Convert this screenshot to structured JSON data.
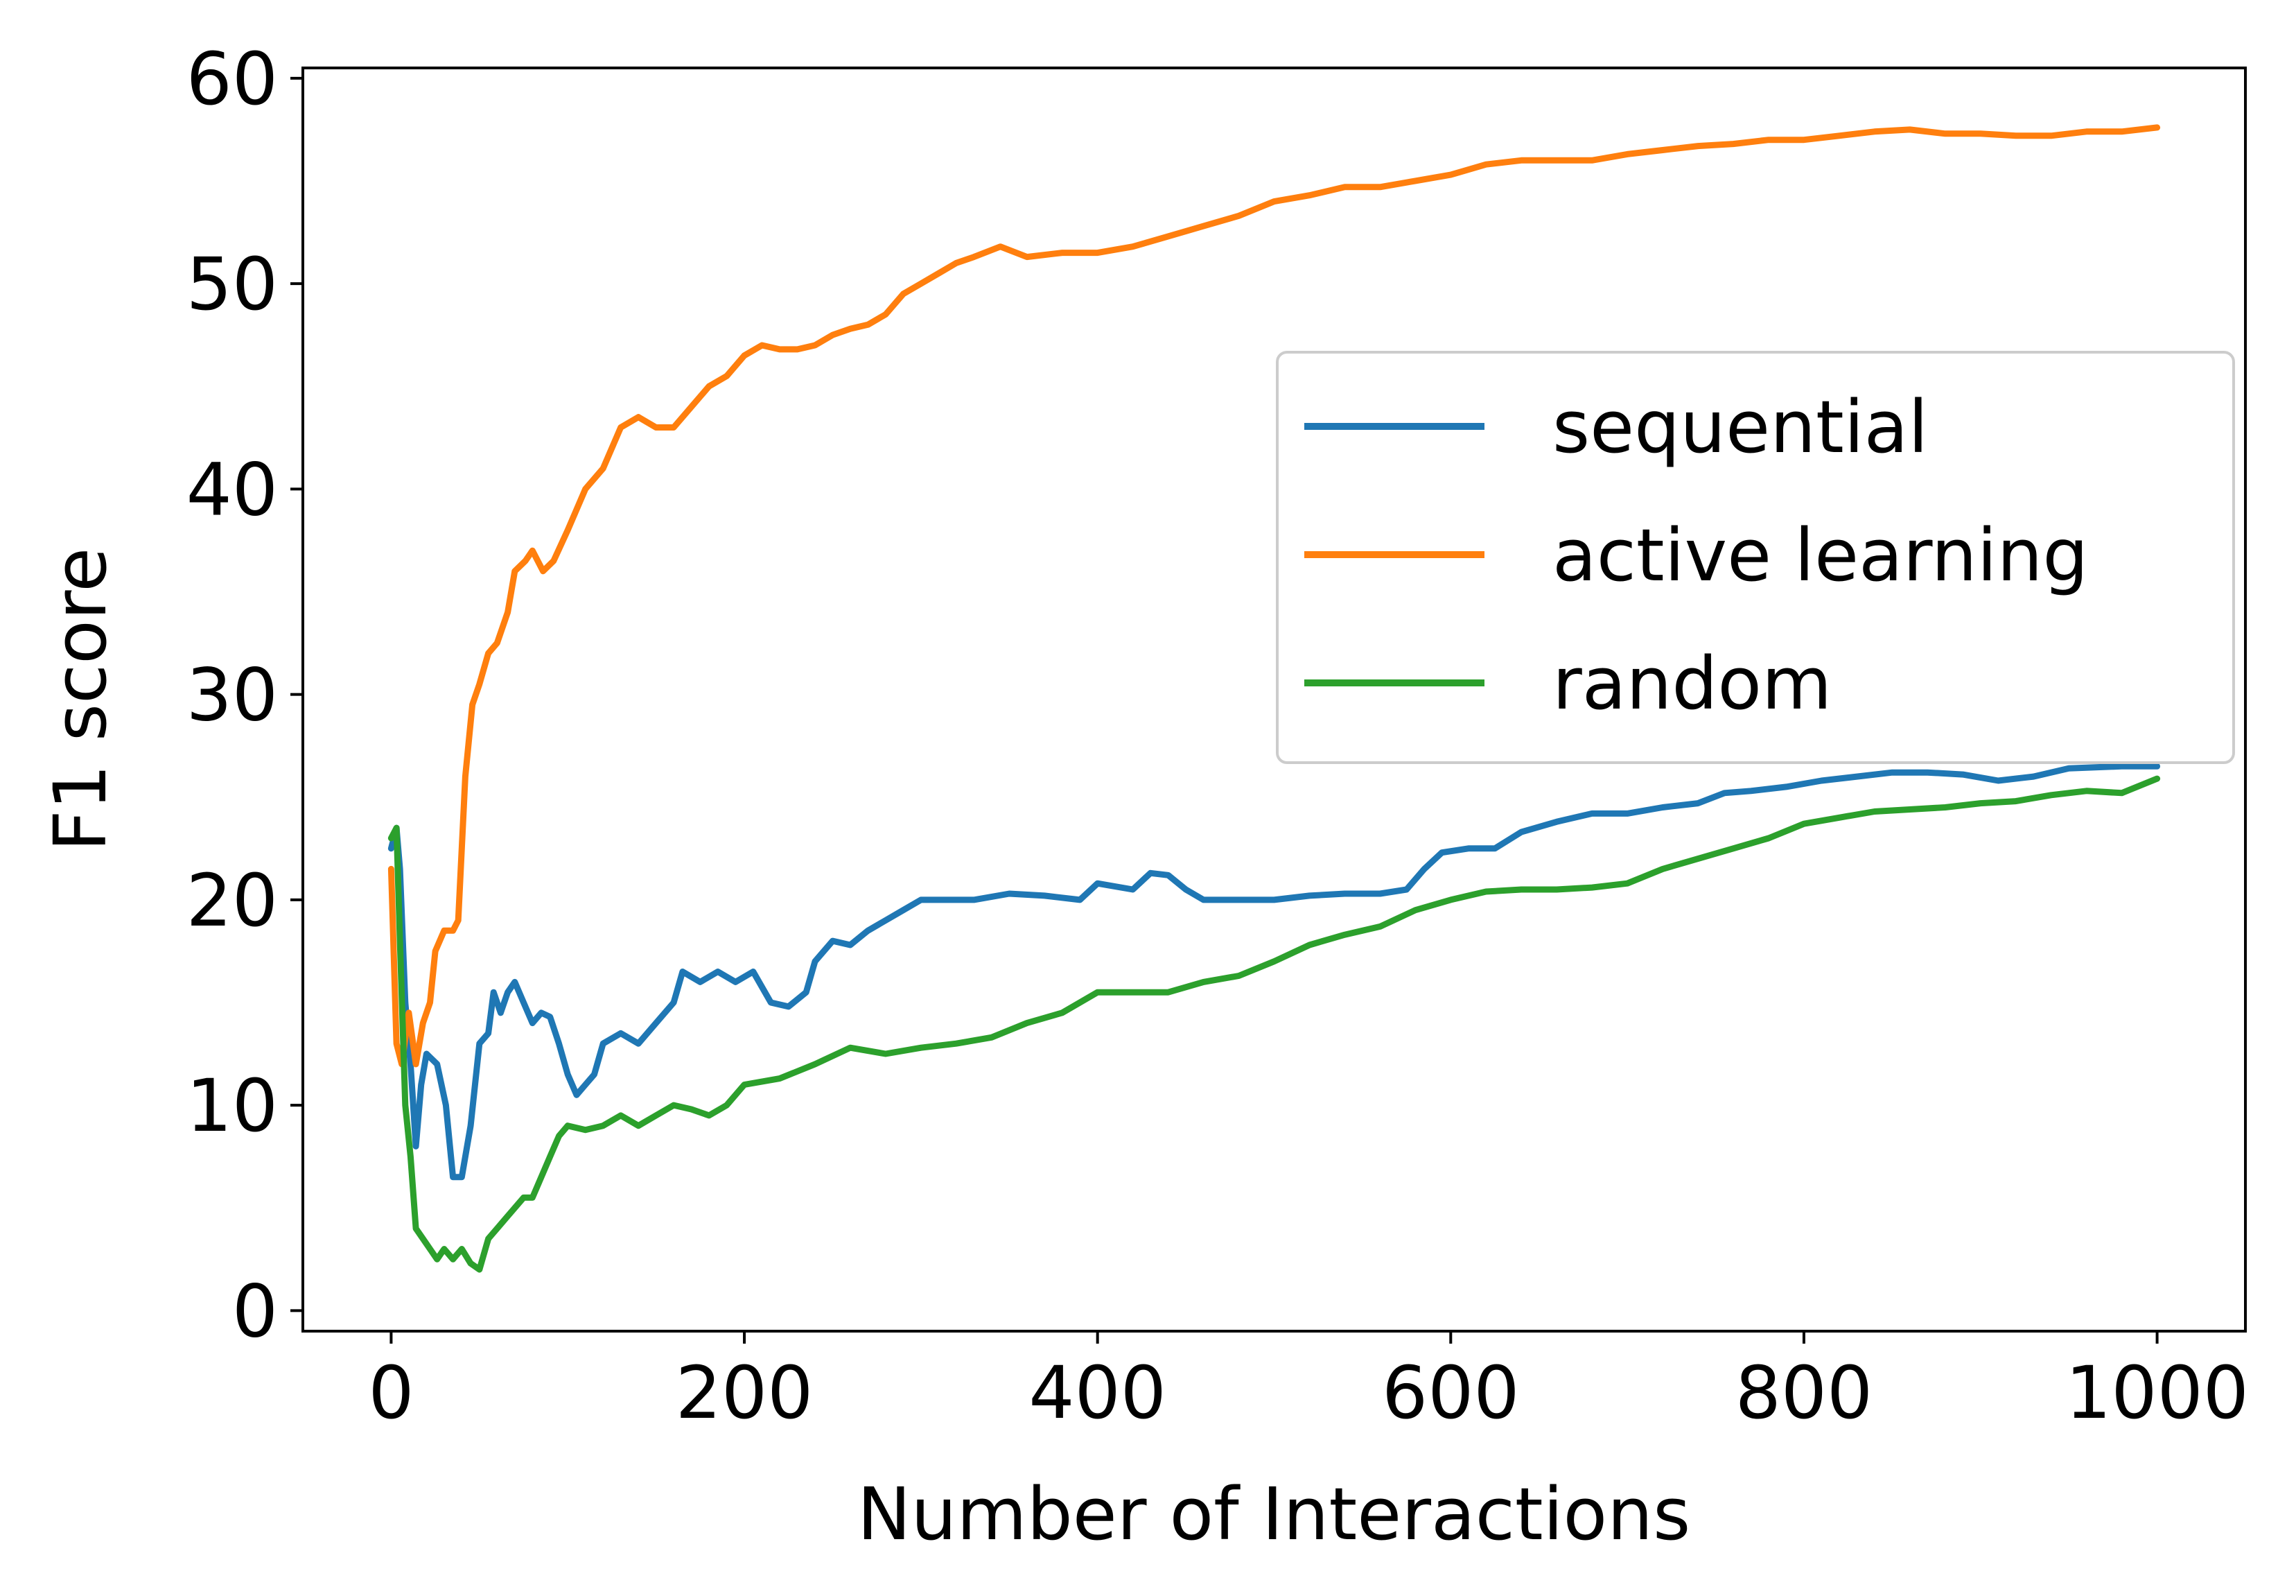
{
  "chart_data": {
    "type": "line",
    "title": "",
    "xlabel": "Number of Interactions",
    "ylabel": "F1 score",
    "xlim": [
      -50,
      1050
    ],
    "ylim": [
      -1,
      60.5
    ],
    "xticks": [
      0,
      200,
      400,
      600,
      800,
      1000
    ],
    "yticks": [
      0,
      10,
      20,
      30,
      40,
      50,
      60
    ],
    "grid": false,
    "legend_position": "center-right",
    "series": [
      {
        "name": "sequential",
        "color": "#1f77b4",
        "points": [
          [
            0,
            22.5
          ],
          [
            3,
            23.5
          ],
          [
            5,
            21.5
          ],
          [
            8,
            15
          ],
          [
            11,
            12
          ],
          [
            14,
            8
          ],
          [
            17,
            11
          ],
          [
            20,
            12.5
          ],
          [
            26,
            12
          ],
          [
            31,
            10
          ],
          [
            35,
            6.5
          ],
          [
            40,
            6.5
          ],
          [
            45,
            9
          ],
          [
            50,
            13
          ],
          [
            55,
            13.5
          ],
          [
            58,
            15.5
          ],
          [
            62,
            14.5
          ],
          [
            66,
            15.5
          ],
          [
            70,
            16
          ],
          [
            75,
            15
          ],
          [
            80,
            14
          ],
          [
            85,
            14.5
          ],
          [
            90,
            14.3
          ],
          [
            95,
            13
          ],
          [
            100,
            11.5
          ],
          [
            105,
            10.5
          ],
          [
            110,
            11
          ],
          [
            115,
            11.5
          ],
          [
            120,
            13
          ],
          [
            130,
            13.5
          ],
          [
            140,
            13
          ],
          [
            150,
            14
          ],
          [
            160,
            15
          ],
          [
            165,
            16.5
          ],
          [
            175,
            16
          ],
          [
            185,
            16.5
          ],
          [
            195,
            16
          ],
          [
            205,
            16.5
          ],
          [
            215,
            15
          ],
          [
            225,
            14.8
          ],
          [
            235,
            15.5
          ],
          [
            240,
            17
          ],
          [
            250,
            18
          ],
          [
            260,
            17.8
          ],
          [
            270,
            18.5
          ],
          [
            280,
            19
          ],
          [
            290,
            19.5
          ],
          [
            300,
            20
          ],
          [
            330,
            20
          ],
          [
            350,
            20.3
          ],
          [
            370,
            20.2
          ],
          [
            390,
            20
          ],
          [
            400,
            20.8
          ],
          [
            420,
            20.5
          ],
          [
            430,
            21.3
          ],
          [
            440,
            21.2
          ],
          [
            450,
            20.5
          ],
          [
            460,
            20
          ],
          [
            500,
            20
          ],
          [
            520,
            20.2
          ],
          [
            540,
            20.3
          ],
          [
            560,
            20.3
          ],
          [
            575,
            20.5
          ],
          [
            585,
            21.5
          ],
          [
            595,
            22.3
          ],
          [
            610,
            22.5
          ],
          [
            625,
            22.5
          ],
          [
            640,
            23.3
          ],
          [
            660,
            23.8
          ],
          [
            680,
            24.2
          ],
          [
            700,
            24.2
          ],
          [
            720,
            24.5
          ],
          [
            740,
            24.7
          ],
          [
            755,
            25.2
          ],
          [
            770,
            25.3
          ],
          [
            790,
            25.5
          ],
          [
            810,
            25.8
          ],
          [
            830,
            26
          ],
          [
            850,
            26.2
          ],
          [
            870,
            26.2
          ],
          [
            890,
            26.1
          ],
          [
            910,
            25.8
          ],
          [
            930,
            26
          ],
          [
            950,
            26.4
          ],
          [
            980,
            26.5
          ],
          [
            1000,
            26.5
          ]
        ]
      },
      {
        "name": "active learning",
        "color": "#ff7f0e",
        "points": [
          [
            0,
            21.5
          ],
          [
            3,
            13
          ],
          [
            6,
            12
          ],
          [
            10,
            14.5
          ],
          [
            14,
            12
          ],
          [
            18,
            14
          ],
          [
            22,
            15
          ],
          [
            25,
            17.5
          ],
          [
            30,
            18.5
          ],
          [
            35,
            18.5
          ],
          [
            38,
            19
          ],
          [
            42,
            26
          ],
          [
            46,
            29.5
          ],
          [
            50,
            30.5
          ],
          [
            55,
            32
          ],
          [
            60,
            32.5
          ],
          [
            66,
            34
          ],
          [
            70,
            36
          ],
          [
            76,
            36.5
          ],
          [
            80,
            37
          ],
          [
            86,
            36
          ],
          [
            92,
            36.5
          ],
          [
            100,
            38
          ],
          [
            110,
            40
          ],
          [
            120,
            41
          ],
          [
            130,
            43
          ],
          [
            140,
            43.5
          ],
          [
            150,
            43
          ],
          [
            160,
            43
          ],
          [
            170,
            44
          ],
          [
            180,
            45
          ],
          [
            190,
            45.5
          ],
          [
            200,
            46.5
          ],
          [
            210,
            47
          ],
          [
            220,
            46.8
          ],
          [
            230,
            46.8
          ],
          [
            240,
            47
          ],
          [
            250,
            47.5
          ],
          [
            260,
            47.8
          ],
          [
            270,
            48
          ],
          [
            280,
            48.5
          ],
          [
            290,
            49.5
          ],
          [
            300,
            50
          ],
          [
            310,
            50.5
          ],
          [
            320,
            51
          ],
          [
            330,
            51.3
          ],
          [
            345,
            51.8
          ],
          [
            360,
            51.3
          ],
          [
            380,
            51.5
          ],
          [
            400,
            51.5
          ],
          [
            420,
            51.8
          ],
          [
            440,
            52.3
          ],
          [
            460,
            52.8
          ],
          [
            480,
            53.3
          ],
          [
            500,
            54
          ],
          [
            520,
            54.3
          ],
          [
            540,
            54.7
          ],
          [
            560,
            54.7
          ],
          [
            580,
            55
          ],
          [
            600,
            55.3
          ],
          [
            620,
            55.8
          ],
          [
            640,
            56
          ],
          [
            660,
            56
          ],
          [
            680,
            56
          ],
          [
            700,
            56.3
          ],
          [
            720,
            56.5
          ],
          [
            740,
            56.7
          ],
          [
            760,
            56.8
          ],
          [
            780,
            57
          ],
          [
            800,
            57
          ],
          [
            820,
            57.2
          ],
          [
            840,
            57.4
          ],
          [
            860,
            57.5
          ],
          [
            880,
            57.3
          ],
          [
            900,
            57.3
          ],
          [
            920,
            57.2
          ],
          [
            940,
            57.2
          ],
          [
            960,
            57.4
          ],
          [
            980,
            57.4
          ],
          [
            1000,
            57.6
          ]
        ]
      },
      {
        "name": "random",
        "color": "#2ca02c",
        "points": [
          [
            0,
            23
          ],
          [
            3,
            23.5
          ],
          [
            5,
            18
          ],
          [
            8,
            10
          ],
          [
            11,
            7.5
          ],
          [
            14,
            4
          ],
          [
            18,
            3.5
          ],
          [
            22,
            3
          ],
          [
            26,
            2.5
          ],
          [
            30,
            3
          ],
          [
            35,
            2.5
          ],
          [
            40,
            3
          ],
          [
            45,
            2.3
          ],
          [
            50,
            2
          ],
          [
            55,
            3.5
          ],
          [
            60,
            4
          ],
          [
            65,
            4.5
          ],
          [
            70,
            5
          ],
          [
            75,
            5.5
          ],
          [
            80,
            5.5
          ],
          [
            85,
            6.5
          ],
          [
            90,
            7.5
          ],
          [
            95,
            8.5
          ],
          [
            100,
            9
          ],
          [
            110,
            8.8
          ],
          [
            120,
            9
          ],
          [
            130,
            9.5
          ],
          [
            140,
            9
          ],
          [
            150,
            9.5
          ],
          [
            160,
            10
          ],
          [
            170,
            9.8
          ],
          [
            180,
            9.5
          ],
          [
            190,
            10
          ],
          [
            200,
            11
          ],
          [
            220,
            11.3
          ],
          [
            240,
            12
          ],
          [
            260,
            12.8
          ],
          [
            280,
            12.5
          ],
          [
            300,
            12.8
          ],
          [
            320,
            13
          ],
          [
            340,
            13.3
          ],
          [
            360,
            14
          ],
          [
            380,
            14.5
          ],
          [
            400,
            15.5
          ],
          [
            420,
            15.5
          ],
          [
            440,
            15.5
          ],
          [
            460,
            16
          ],
          [
            480,
            16.3
          ],
          [
            500,
            17
          ],
          [
            520,
            17.8
          ],
          [
            540,
            18.3
          ],
          [
            560,
            18.7
          ],
          [
            580,
            19.5
          ],
          [
            600,
            20
          ],
          [
            620,
            20.4
          ],
          [
            640,
            20.5
          ],
          [
            660,
            20.5
          ],
          [
            680,
            20.6
          ],
          [
            700,
            20.8
          ],
          [
            720,
            21.5
          ],
          [
            740,
            22
          ],
          [
            760,
            22.5
          ],
          [
            780,
            23
          ],
          [
            800,
            23.7
          ],
          [
            820,
            24
          ],
          [
            840,
            24.3
          ],
          [
            860,
            24.4
          ],
          [
            880,
            24.5
          ],
          [
            900,
            24.7
          ],
          [
            920,
            24.8
          ],
          [
            940,
            25.1
          ],
          [
            960,
            25.3
          ],
          [
            980,
            25.2
          ],
          [
            1000,
            25.9
          ]
        ]
      }
    ]
  }
}
